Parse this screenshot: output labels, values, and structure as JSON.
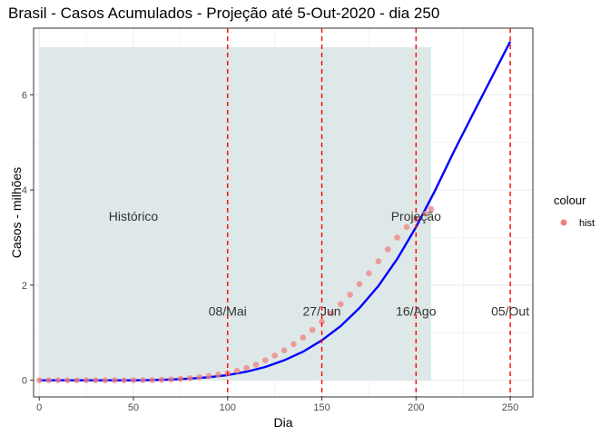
{
  "chart_data": {
    "type": "scatter",
    "title": "Brasil - Casos Acumulados - Projeção até 5-Out-2020 - dia 250",
    "xlabel": "Dia",
    "ylabel": "Casos - milhões",
    "xlim": [
      -3,
      262
    ],
    "ylim": [
      -0.35,
      7.4
    ],
    "x_ticks": [
      0,
      50,
      100,
      150,
      200,
      250
    ],
    "y_ticks": [
      0,
      2,
      4,
      6
    ],
    "grid": true,
    "colors": {
      "hist_points": "#f08080",
      "projection_line": "#0000ff",
      "vlines": "#ff0000",
      "shade": "#dfe8e8",
      "panel_border": "#333333",
      "grid": "#ebebeb"
    },
    "shade_region": {
      "x": [
        0,
        208
      ],
      "y": [
        0,
        7
      ]
    },
    "vlines": [
      {
        "x": 100,
        "label": "08/Mai"
      },
      {
        "x": 150,
        "label": "27/Jun"
      },
      {
        "x": 200,
        "label": "16/Ago"
      },
      {
        "x": 250,
        "label": "05/Out"
      }
    ],
    "vline_label_y": 1.45,
    "annotations": [
      {
        "x": 50,
        "y": 3.45,
        "text": "Histórico"
      },
      {
        "x": 200,
        "y": 3.45,
        "text": "Projeção"
      }
    ],
    "series": [
      {
        "name": "hist",
        "kind": "points",
        "x": [
          0,
          5,
          10,
          15,
          20,
          25,
          30,
          35,
          40,
          45,
          50,
          55,
          60,
          65,
          70,
          75,
          80,
          85,
          90,
          95,
          100,
          105,
          110,
          115,
          120,
          125,
          130,
          135,
          140,
          145,
          150,
          155,
          160,
          165,
          170,
          175,
          180,
          185,
          190,
          195,
          200,
          205,
          208
        ],
        "y": [
          0.0,
          0.0,
          0.0,
          0.0,
          0.0,
          0.0,
          0.0,
          0.0,
          0.0,
          0.0,
          0.0,
          0.002,
          0.005,
          0.01,
          0.018,
          0.03,
          0.045,
          0.065,
          0.09,
          0.12,
          0.15,
          0.2,
          0.26,
          0.33,
          0.42,
          0.52,
          0.63,
          0.76,
          0.9,
          1.06,
          1.23,
          1.41,
          1.6,
          1.8,
          2.02,
          2.25,
          2.5,
          2.75,
          3.0,
          3.22,
          3.38,
          3.5,
          3.6
        ]
      },
      {
        "name": "",
        "kind": "line",
        "x": [
          0,
          10,
          20,
          30,
          40,
          50,
          60,
          70,
          80,
          90,
          100,
          110,
          120,
          130,
          140,
          150,
          160,
          170,
          180,
          190,
          200,
          210,
          220,
          230,
          240,
          250
        ],
        "y": [
          0.0,
          0.0,
          0.0,
          0.0,
          0.0,
          0.0,
          0.005,
          0.015,
          0.035,
          0.065,
          0.11,
          0.18,
          0.28,
          0.42,
          0.6,
          0.84,
          1.14,
          1.52,
          1.98,
          2.55,
          3.22,
          3.98,
          4.8,
          5.58,
          6.35,
          7.12
        ]
      }
    ],
    "legend": {
      "title": "colour",
      "entries": [
        "hist"
      ],
      "placement": "right"
    }
  }
}
